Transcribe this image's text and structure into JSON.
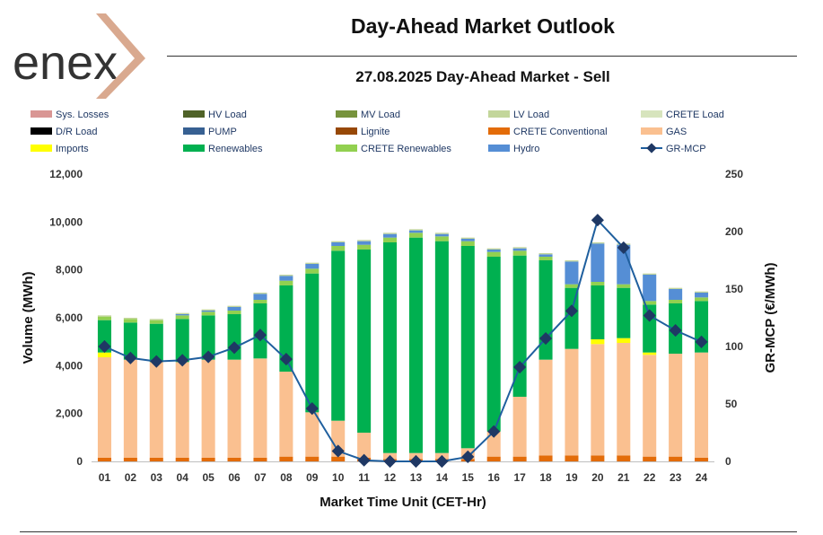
{
  "brand": {
    "name": "enex",
    "text_color": "#333333",
    "accent_color": "#d9a98f"
  },
  "header": {
    "title": "Day-Ahead Market Outlook",
    "subtitle": "27.08.2025  Day-Ahead Market - Sell"
  },
  "chart_data": {
    "type": "bar",
    "stacked": true,
    "categories": [
      "01",
      "02",
      "03",
      "04",
      "05",
      "06",
      "07",
      "08",
      "09",
      "10",
      "11",
      "12",
      "13",
      "14",
      "15",
      "16",
      "17",
      "18",
      "19",
      "20",
      "21",
      "22",
      "23",
      "24"
    ],
    "xlabel": "Market Time Unit (CET-Hr)",
    "ylabel": "Volume (MWh)",
    "y2label": "GR-MCP (€/MWh)",
    "ylim": [
      0,
      12000
    ],
    "y2lim": [
      0,
      250
    ],
    "yticks": [
      0,
      2000,
      4000,
      6000,
      8000,
      10000,
      12000
    ],
    "yticks_labels": [
      "0",
      "2,000",
      "4,000",
      "6,000",
      "8,000",
      "10,000",
      "12,000"
    ],
    "y2ticks": [
      0,
      50,
      100,
      150,
      200,
      250
    ],
    "legend": [
      {
        "name": "Sys. Losses",
        "color": "#d99694",
        "kind": "bar"
      },
      {
        "name": "HV Load",
        "color": "#4f6228",
        "kind": "bar"
      },
      {
        "name": "MV Load",
        "color": "#77933c",
        "kind": "bar"
      },
      {
        "name": "LV Load",
        "color": "#c3d69b",
        "kind": "bar"
      },
      {
        "name": "CRETE Load",
        "color": "#d7e4bd",
        "kind": "bar"
      },
      {
        "name": "D/R Load",
        "color": "#000000",
        "kind": "bar"
      },
      {
        "name": "PUMP",
        "color": "#376092",
        "kind": "bar"
      },
      {
        "name": "Lignite",
        "color": "#974806",
        "kind": "bar"
      },
      {
        "name": "CRETE Conventional",
        "color": "#e36c09",
        "kind": "bar"
      },
      {
        "name": "GAS",
        "color": "#fac090",
        "kind": "bar"
      },
      {
        "name": "Imports",
        "color": "#ffff00",
        "kind": "bar"
      },
      {
        "name": "Renewables",
        "color": "#00b050",
        "kind": "bar"
      },
      {
        "name": "CRETE Renewables",
        "color": "#92d050",
        "kind": "bar"
      },
      {
        "name": "Hydro",
        "color": "#558ed5",
        "kind": "bar"
      },
      {
        "name": "GR-MCP",
        "color": "#1f5f9e",
        "kind": "line"
      }
    ],
    "series": [
      {
        "name": "CRETE Conventional",
        "color": "#e36c09",
        "values": [
          150,
          150,
          150,
          150,
          150,
          150,
          150,
          200,
          200,
          200,
          150,
          100,
          100,
          100,
          100,
          200,
          200,
          250,
          250,
          250,
          250,
          200,
          200,
          150
        ]
      },
      {
        "name": "GAS",
        "color": "#fac090",
        "values": [
          4200,
          4100,
          4000,
          4000,
          4100,
          4100,
          4150,
          3550,
          1850,
          1500,
          1050,
          250,
          250,
          250,
          450,
          1050,
          2500,
          4000,
          4450,
          4650,
          4700,
          4250,
          4300,
          4400
        ]
      },
      {
        "name": "Imports",
        "color": "#ffff00",
        "values": [
          200,
          0,
          0,
          0,
          0,
          0,
          0,
          0,
          0,
          0,
          0,
          0,
          0,
          0,
          0,
          0,
          0,
          0,
          0,
          200,
          200,
          100,
          0,
          0
        ]
      },
      {
        "name": "Renewables",
        "color": "#00b050",
        "values": [
          1350,
          1550,
          1600,
          1800,
          1850,
          1900,
          2300,
          3600,
          5800,
          7100,
          7650,
          8800,
          9000,
          8850,
          8450,
          7300,
          5900,
          4150,
          2550,
          2250,
          2100,
          2000,
          2100,
          2150
        ]
      },
      {
        "name": "CRETE Renewables",
        "color": "#92d050",
        "values": [
          150,
          150,
          150,
          150,
          150,
          150,
          150,
          200,
          200,
          200,
          200,
          200,
          200,
          200,
          200,
          200,
          200,
          150,
          150,
          150,
          150,
          150,
          150,
          150
        ]
      },
      {
        "name": "Hydro",
        "color": "#558ed5",
        "values": [
          0,
          0,
          0,
          50,
          50,
          150,
          250,
          200,
          200,
          150,
          150,
          150,
          100,
          100,
          100,
          100,
          100,
          100,
          950,
          1600,
          1650,
          1100,
          450,
          200
        ]
      },
      {
        "name": "LV Load",
        "color": "#c3d69b",
        "values": [
          50,
          50,
          50,
          50,
          50,
          50,
          50,
          50,
          50,
          50,
          50,
          50,
          50,
          50,
          50,
          50,
          50,
          50,
          50,
          50,
          50,
          50,
          50,
          50
        ]
      }
    ],
    "line": {
      "name": "GR-MCP",
      "color": "#1f5f9e",
      "values": [
        100,
        90,
        87,
        88,
        91,
        99,
        110,
        89,
        46,
        9,
        1,
        0,
        0,
        0,
        4,
        26,
        82,
        107,
        131,
        210,
        186,
        127,
        114,
        104
      ]
    }
  }
}
